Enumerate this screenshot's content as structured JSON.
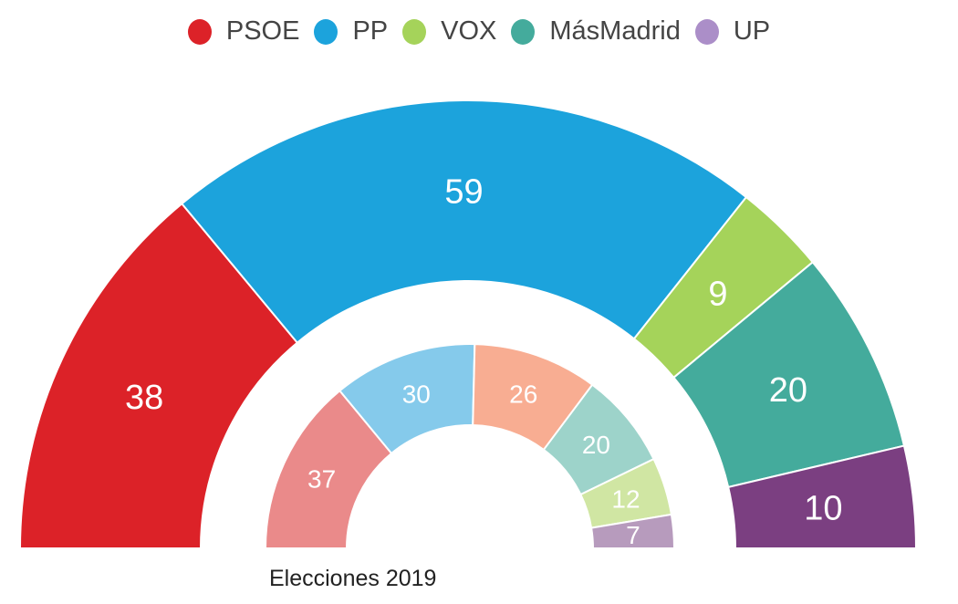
{
  "chart_data": {
    "type": "pie",
    "subtype": "nested-semicircle",
    "legend": [
      {
        "label": "PSOE",
        "color": "#dc2228"
      },
      {
        "label": "PP",
        "color": "#1ca3dc"
      },
      {
        "label": "VOX",
        "color": "#a5d35a"
      },
      {
        "label": "MásMadrid",
        "color": "#44ab9c"
      },
      {
        "label": "UP",
        "color": "#ab8ec8"
      }
    ],
    "outer_ring": [
      {
        "party": "PSOE",
        "value": 38,
        "color": "#dc2228"
      },
      {
        "party": "PP",
        "value": 59,
        "color": "#1ca3dc"
      },
      {
        "party": "VOX",
        "value": 9,
        "color": "#a5d35a"
      },
      {
        "party": "MásMadrid",
        "value": 20,
        "color": "#44ab9c"
      },
      {
        "party": "UP",
        "value": 10,
        "color": "#7b3f81"
      }
    ],
    "inner_ring": [
      {
        "party": "PSOE",
        "value": 37,
        "color": "#ea8a8a"
      },
      {
        "party": "PP",
        "value": 30,
        "color": "#85caeb"
      },
      {
        "value": 26,
        "color": "#f8ad92"
      },
      {
        "party": "MásMadrid",
        "value": 20,
        "color": "#9dd3ca"
      },
      {
        "party": "VOX",
        "value": 12,
        "color": "#d0e6a3"
      },
      {
        "party": "UP",
        "value": 7,
        "color": "#b79bbd"
      }
    ],
    "inner_label": "Elecciones 2019"
  }
}
